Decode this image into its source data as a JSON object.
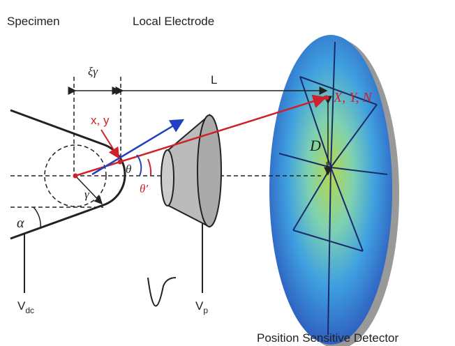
{
  "labels": {
    "specimen": "Specimen",
    "local_electrode": "Local Electrode",
    "xi_gamma": "ξγ",
    "L": "L",
    "xy": "x, y",
    "XYN": "X, Y, N",
    "theta": "θ",
    "theta_prime": "θ′",
    "gamma": "γ",
    "D": "D",
    "alpha": "α",
    "vdc": {
      "main": "V",
      "sub": "dc"
    },
    "vp": {
      "main": "V",
      "sub": "p"
    },
    "detector": "Position Sensitive Detector"
  }
}
